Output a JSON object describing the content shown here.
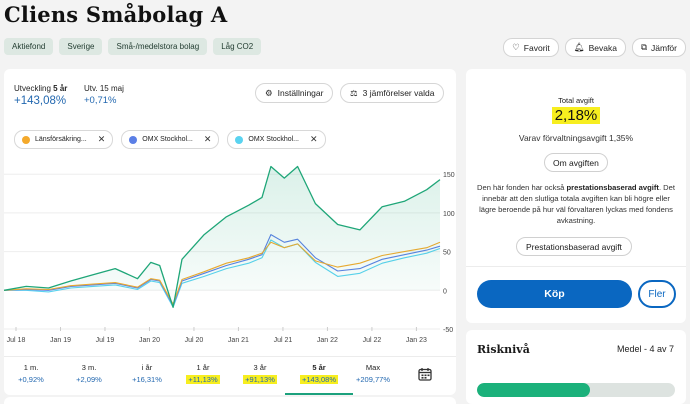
{
  "title": "Cliens Småbolag A",
  "tags": [
    "Aktiefond",
    "Sverige",
    "Små-/medelstora bolag",
    "Låg CO2"
  ],
  "actions": [
    {
      "label": "Favorit",
      "icon": "heart-icon"
    },
    {
      "label": "Bevaka",
      "icon": "bell-icon"
    },
    {
      "label": "Jämför",
      "icon": "compare-icon"
    }
  ],
  "stats": {
    "dev_label": "Utveckling",
    "dev_period": "5 år",
    "dev_value": "+143,08%",
    "day_label": "Utv. 15 maj",
    "day_value": "+0,71%"
  },
  "toolbar": {
    "settings_label": "Inställningar",
    "compare_label": "3 jämförelser valda"
  },
  "legend": [
    {
      "label": "Länsförsäkring...",
      "color": "#f4a92b"
    },
    {
      "label": "OMX Stockhol...",
      "color": "#5b7fe6"
    },
    {
      "label": "OMX Stockhol...",
      "color": "#5ad3f0"
    }
  ],
  "chart_data": {
    "type": "line",
    "x_ticks": [
      "Jul 18",
      "Jan 19",
      "Jul 19",
      "Jan 20",
      "Jul 20",
      "Jan 21",
      "Jul 21",
      "Jan 22",
      "Jul 22",
      "Jan 23"
    ],
    "y_ticks": [
      150,
      100,
      50,
      0,
      -50
    ],
    "ylim": [
      -50,
      180
    ],
    "x": [
      0,
      0.5,
      1,
      1.5,
      2,
      2.5,
      3,
      3.3,
      3.5,
      3.8,
      4,
      4.5,
      5,
      5.5,
      5.8,
      6,
      6.3,
      6.6,
      7,
      7.5,
      8,
      8.5,
      9,
      9.5,
      9.8
    ],
    "series": [
      {
        "name": "Cliens Småbolag A",
        "color": "#1fa678",
        "values": [
          0,
          5,
          3,
          12,
          20,
          28,
          15,
          36,
          32,
          -22,
          40,
          72,
          95,
          110,
          120,
          160,
          145,
          160,
          112,
          85,
          78,
          108,
          115,
          130,
          143
        ]
      },
      {
        "name": "Länsförsäkring...",
        "color": "#f4a92b",
        "values": [
          0,
          2,
          1,
          6,
          8,
          10,
          4,
          15,
          13,
          -18,
          14,
          24,
          35,
          42,
          48,
          62,
          55,
          60,
          38,
          30,
          35,
          45,
          50,
          55,
          62
        ]
      },
      {
        "name": "OMX Stockhol...",
        "color": "#5b7fe6",
        "values": [
          0,
          1,
          0,
          5,
          7,
          9,
          3,
          14,
          12,
          -20,
          12,
          22,
          32,
          40,
          46,
          72,
          62,
          66,
          42,
          25,
          28,
          40,
          46,
          52,
          57
        ]
      },
      {
        "name": "OMX Stockhol...",
        "color": "#5ad3f0",
        "values": [
          0,
          0,
          -2,
          3,
          5,
          7,
          1,
          12,
          10,
          -22,
          9,
          18,
          28,
          35,
          42,
          65,
          55,
          60,
          36,
          18,
          22,
          35,
          42,
          48,
          54
        ]
      }
    ]
  },
  "periods": [
    {
      "label": "1 m.",
      "value": "+0,92%",
      "highlight": false
    },
    {
      "label": "3 m.",
      "value": "+2,09%",
      "highlight": false
    },
    {
      "label": "i år",
      "value": "+16,31%",
      "highlight": false
    },
    {
      "label": "1 år",
      "value": "+11,13%",
      "highlight": true
    },
    {
      "label": "3 år",
      "value": "+91,13%",
      "highlight": true
    },
    {
      "label": "5 år",
      "value": "+143,08%",
      "highlight": true,
      "active": true
    },
    {
      "label": "Max",
      "value": "+209,77%",
      "highlight": false
    }
  ],
  "fee": {
    "label": "Total avgift",
    "value": "2,18%",
    "sub": "Varav förvaltningsavgift 1,35%",
    "about_button": "Om avgiften",
    "text_pre": "Den här fonden har också ",
    "text_bold": "prestationsbaserad avgift",
    "text_post": ". Det innebär att den slutliga totala avgiften kan bli högre eller lägre beroende på hur väl förvaltaren lyckas med fondens avkastning.",
    "perf_button": "Prestationsbaserad avgift"
  },
  "buy_label": "Köp",
  "more_label": "Fler",
  "risk": {
    "title": "Risknivå",
    "value": "Medel - 4 av 7",
    "level": 4,
    "max": 7
  }
}
